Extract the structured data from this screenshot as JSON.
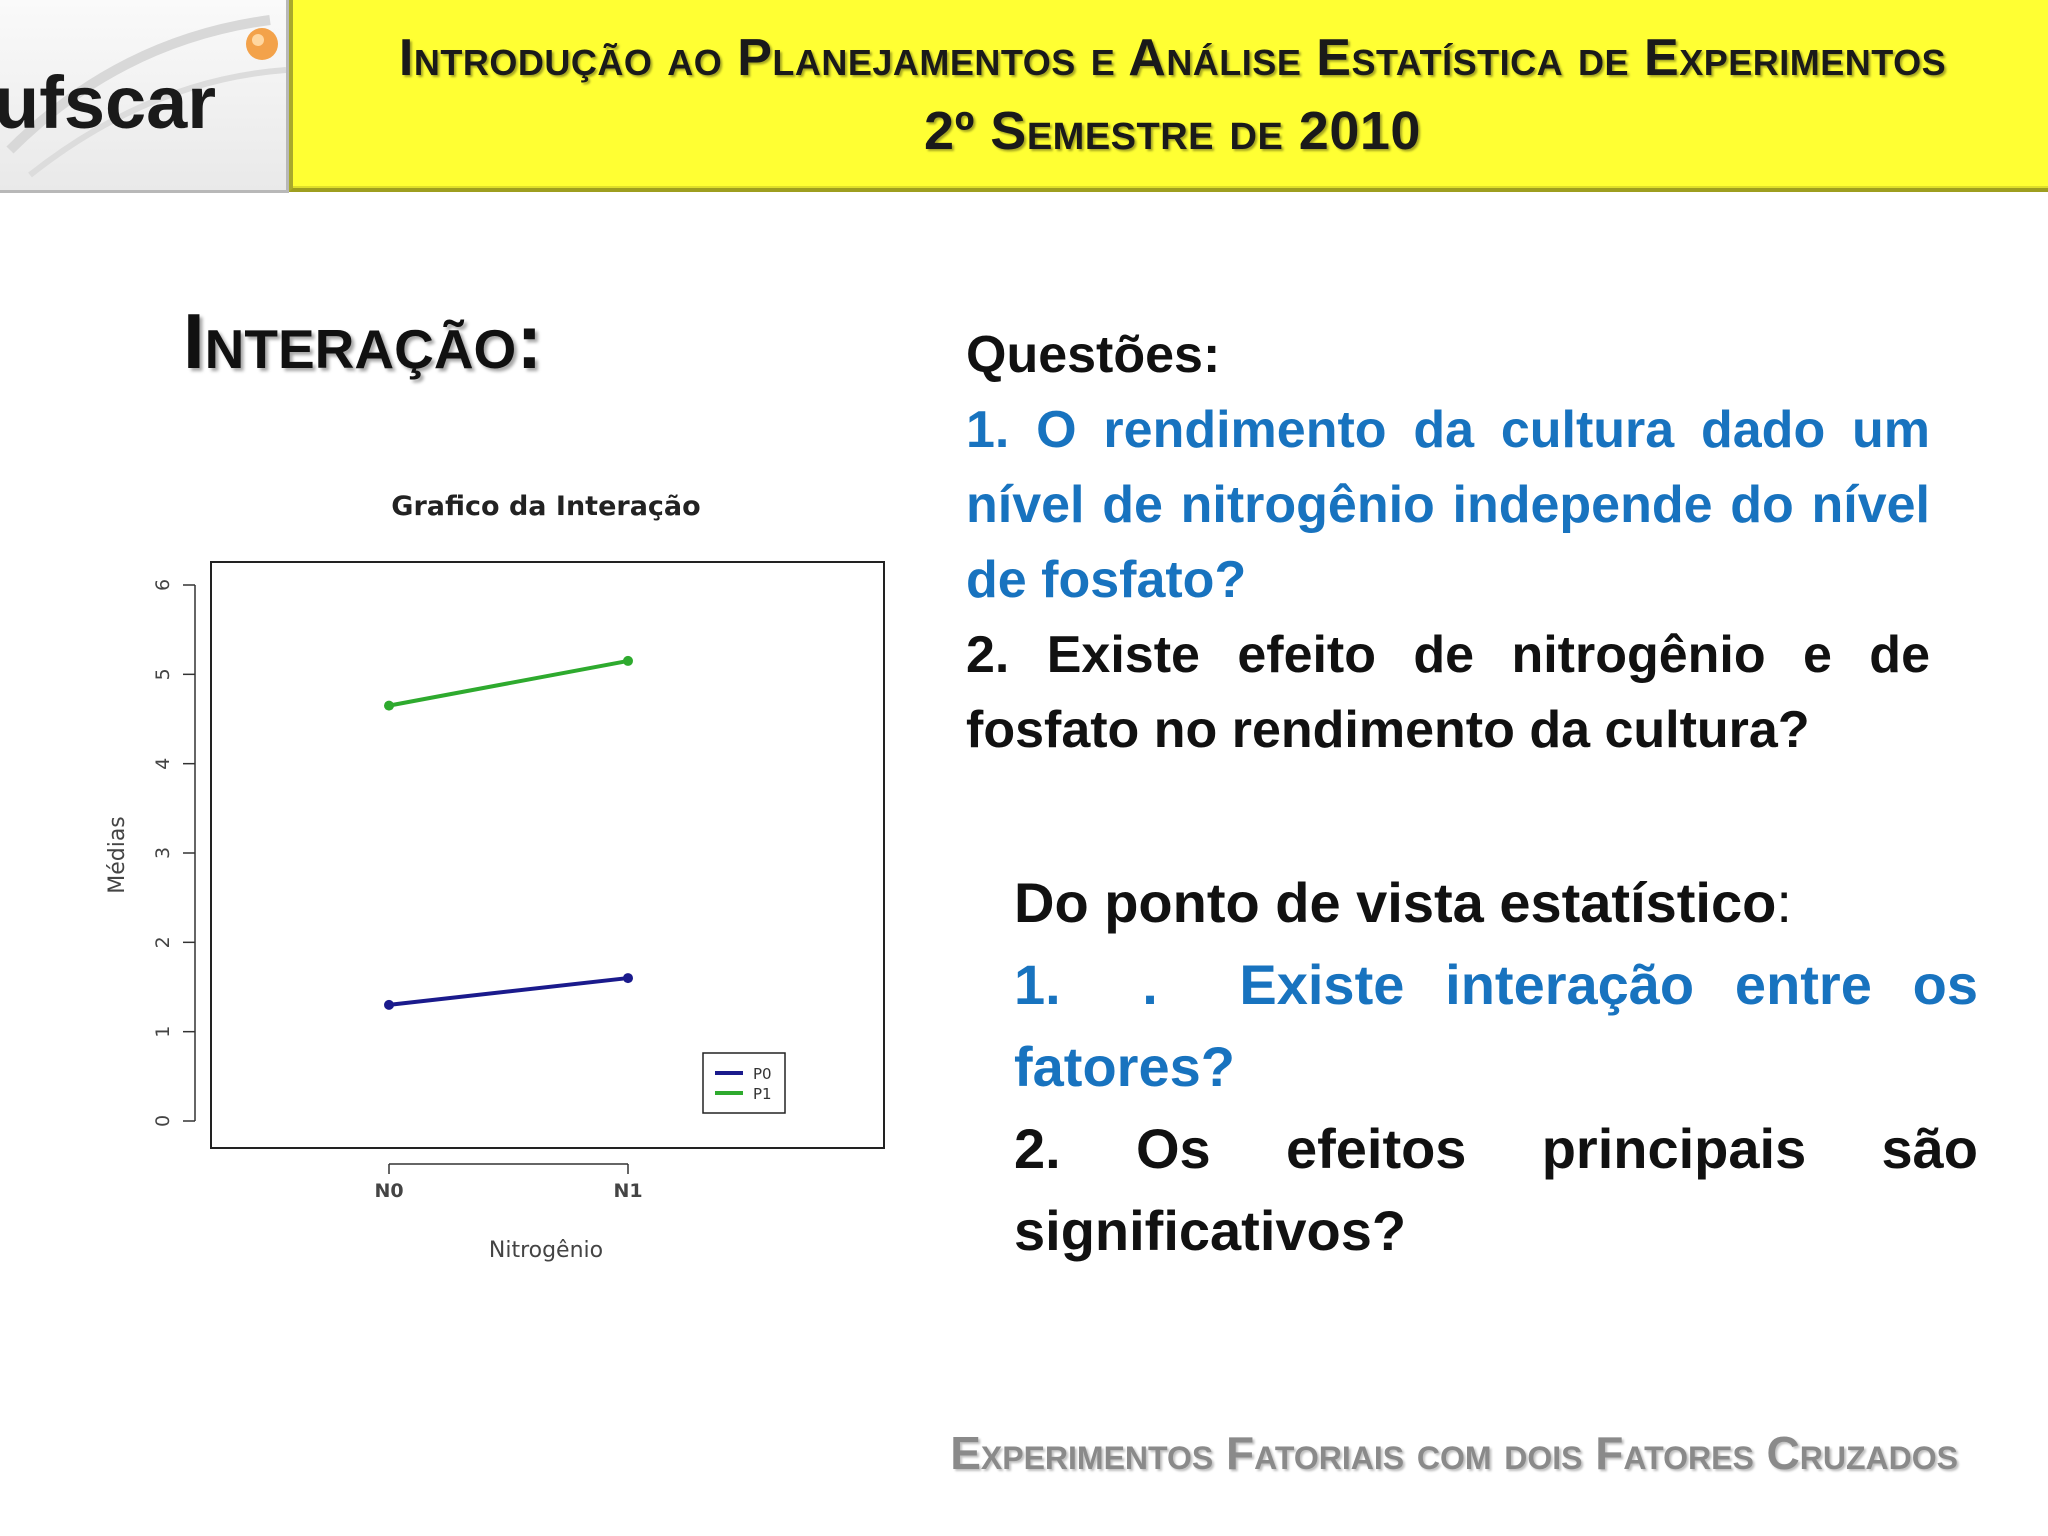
{
  "header": {
    "logo_text": "ufscar",
    "line1": "Introdução ao Planejamentos e Análise Estatística de Experimentos",
    "line2": "2º Semestre de 2010"
  },
  "section_title": "Interação:",
  "questions": {
    "heading": "Questões:",
    "items": [
      "1. O rendimento da cultura dado um nível de nitrogênio independe do nível de fosfato?",
      "2. Existe efeito de nitrogênio e de fosfato no rendimento da cultura?"
    ]
  },
  "statistical": {
    "heading": "Do ponto de vista estatístico",
    "heading_suffix": ":",
    "items": [
      "1.  .  Existe interação entre os fatores?",
      "2. Os efeitos principais são significativos?"
    ]
  },
  "footer": "Experimentos Fatoriais com dois Fatores Cruzados",
  "colors": {
    "header_bg": "#ffff33",
    "blue_text": "#1873bf",
    "series_p0": "#1a1a8c",
    "series_p1": "#2eaa2e"
  },
  "chart_data": {
    "type": "line",
    "title": "Grafico da Interação",
    "xlabel": "Nitrogênio",
    "ylabel": "Médias",
    "categories": [
      "N0",
      "N1"
    ],
    "ylim": [
      0,
      6
    ],
    "yticks": [
      0,
      1,
      2,
      3,
      4,
      5,
      6
    ],
    "series": [
      {
        "name": "P0",
        "values": [
          1.3,
          1.6
        ],
        "color": "#1a1a8c"
      },
      {
        "name": "P1",
        "values": [
          4.65,
          5.15
        ],
        "color": "#2eaa2e"
      }
    ],
    "legend_position": "bottom-right",
    "grid": false
  }
}
